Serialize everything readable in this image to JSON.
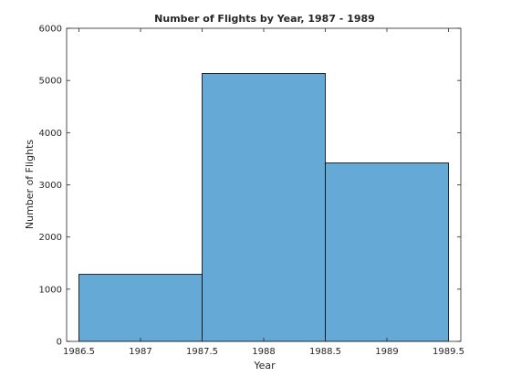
{
  "chart_data": {
    "type": "bar",
    "title": "Number of Flights by Year, 1987 - 1989",
    "xlabel": "Year",
    "ylabel": "Number of Flights",
    "bins": [
      {
        "x0": 1986.5,
        "x1": 1987.5,
        "value": 1285
      },
      {
        "x0": 1987.5,
        "x1": 1988.5,
        "value": 5135
      },
      {
        "x0": 1988.5,
        "x1": 1989.5,
        "value": 3420
      }
    ],
    "xlim": [
      1986.4,
      1989.6
    ],
    "ylim": [
      0,
      6000
    ],
    "xticks": [
      1986.5,
      1987,
      1987.5,
      1988,
      1988.5,
      1989,
      1989.5
    ],
    "xtick_labels": [
      "1986.5",
      "1987",
      "1987.5",
      "1988",
      "1988.5",
      "1989",
      "1989.5"
    ],
    "yticks": [
      0,
      1000,
      2000,
      3000,
      4000,
      5000,
      6000
    ],
    "ytick_labels": [
      "0",
      "1000",
      "2000",
      "3000",
      "4000",
      "5000",
      "6000"
    ],
    "grid": false,
    "colors": {
      "bar_fill": "#65a9d7",
      "bar_edge": "#000000",
      "axis": "#262626"
    }
  }
}
